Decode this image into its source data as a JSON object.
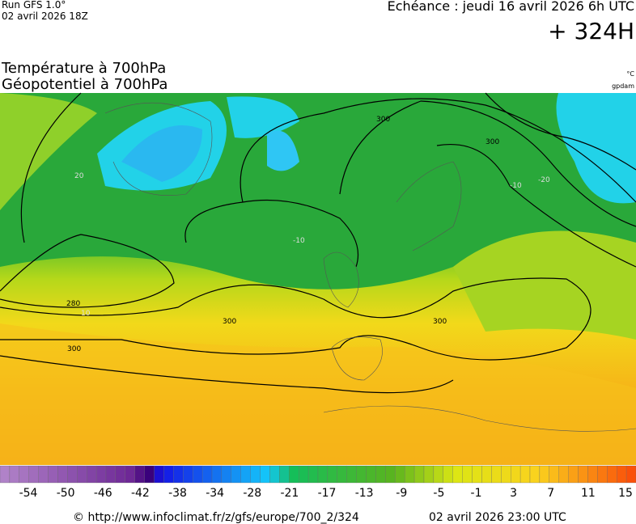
{
  "header": {
    "run": "Run GFS 1.0°",
    "run_date": "02 avril 2026 18Z",
    "echeance": "Echéance : jeudi 16 avril 2026 6h UTC",
    "lead": "+ 324H",
    "title_line1": "Température à 700hPa",
    "title_line2": "Géopotentiel à 700hPa",
    "unit_temp": "°C",
    "unit_geo": "gpdam"
  },
  "contour_labels": [
    "300",
    "300",
    "300",
    "300",
    "300",
    "280",
    "10",
    "20",
    "-10",
    "-10",
    "-20"
  ],
  "colorbar": {
    "labels": [
      "-54",
      "-50",
      "-46",
      "-42",
      "-38",
      "-34",
      "-28",
      "-21",
      "-17",
      "-13",
      "-9",
      "-5",
      "-1",
      "3",
      "7",
      "11",
      "15"
    ]
  },
  "footer": {
    "source": "© http://www.infoclimat.fr/z/gfs/europe/700_2/324",
    "generated": "02 avril 2026 23:00 UTC"
  }
}
